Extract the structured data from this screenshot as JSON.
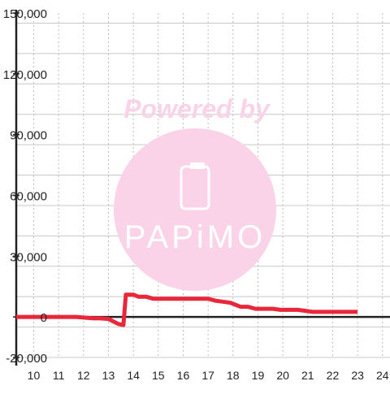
{
  "chart_data": {
    "type": "line",
    "title": "",
    "xlabel": "",
    "ylabel": "",
    "xlim": [
      9.3,
      24.3
    ],
    "ylim": [
      -20000,
      150000
    ],
    "x_ticks": [
      10,
      11,
      12,
      13,
      14,
      15,
      16,
      17,
      18,
      19,
      20,
      21,
      22,
      23,
      24
    ],
    "x_tick_labels": [
      "10",
      "11",
      "12",
      "13",
      "14",
      "15",
      "16",
      "17",
      "18",
      "19",
      "20",
      "21",
      "22",
      "23",
      "24"
    ],
    "y_ticks": [
      -20000,
      0,
      30000,
      60000,
      90000,
      120000,
      150000
    ],
    "y_tick_labels": [
      "-20,000",
      "0",
      "30,000",
      "60,000",
      "90,000",
      "120,000",
      "150,000"
    ],
    "grid": true,
    "series": [
      {
        "color": "#e8283a",
        "x": [
          9.3,
          11.7,
          12.4,
          12.7,
          13.0,
          13.4,
          13.6,
          13.7,
          14.0,
          14.2,
          14.5,
          14.8,
          15.5,
          16.5,
          17.0,
          17.3,
          17.9,
          18.1,
          18.3,
          18.6,
          18.9,
          19.3,
          19.6,
          19.9,
          20.6,
          20.9,
          21.2,
          21.6,
          22.1,
          22.6,
          23.0
        ],
        "y": [
          0,
          0,
          -700,
          -700,
          -1000,
          -3500,
          -4000,
          11000,
          11000,
          10000,
          10000,
          9000,
          9000,
          9000,
          9000,
          8000,
          7000,
          6000,
          5000,
          5000,
          4000,
          4000,
          4000,
          3500,
          3500,
          3000,
          2500,
          2500,
          2500,
          2500,
          2500
        ]
      }
    ],
    "watermark": {
      "text": "Powered by",
      "logo_text": "PAPiMO",
      "color": "#fad3e8"
    }
  }
}
